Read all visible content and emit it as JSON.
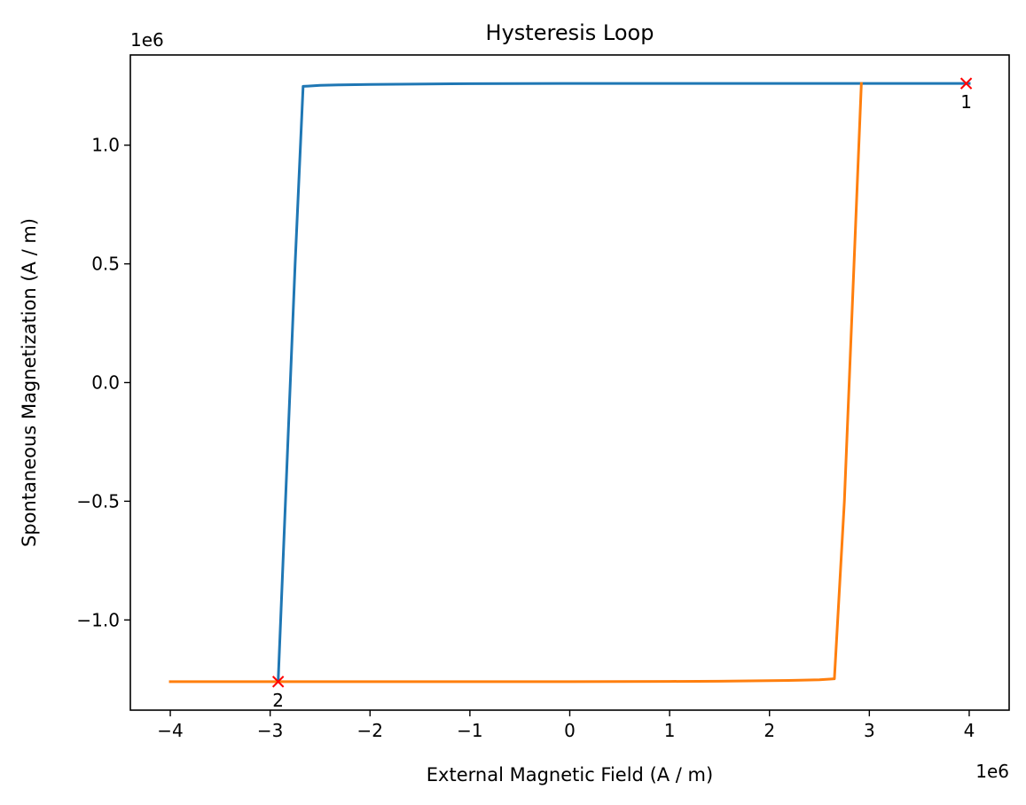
{
  "chart_data": {
    "type": "line",
    "title": "Hysteresis Loop",
    "xlabel": "External Magnetic Field (A / m)",
    "ylabel": "Spontaneous Magnetization (A / m)",
    "x_offset_label": "1e6",
    "y_offset_label": "1e6",
    "xlim": [
      -4.4,
      4.4
    ],
    "ylim": [
      -1.38,
      1.38
    ],
    "x_scale": 1000000,
    "y_scale": 1000000,
    "x_ticks": [
      -4,
      -3,
      -2,
      -1,
      0,
      1,
      2,
      3,
      4
    ],
    "x_tick_labels": [
      "−4",
      "−3",
      "−2",
      "−1",
      "0",
      "1",
      "2",
      "3",
      "4"
    ],
    "y_ticks": [
      -1.0,
      -0.5,
      0.0,
      0.5,
      1.0
    ],
    "y_tick_labels": [
      "−1.0",
      "−0.5",
      "0.0",
      "0.5",
      "1.0"
    ],
    "grid": false,
    "legend": "none",
    "series": [
      {
        "color": "#1f77b4",
        "x": [
          4.0,
          3.0,
          2.0,
          1.0,
          0.0,
          -1.0,
          -2.0,
          -2.3,
          -2.5,
          -2.62,
          -2.67,
          -2.75,
          -2.92
        ],
        "y": [
          1.26,
          1.26,
          1.26,
          1.26,
          1.26,
          1.259,
          1.256,
          1.254,
          1.252,
          1.249,
          1.248,
          0.5,
          -1.26
        ]
      },
      {
        "color": "#ff7f0e",
        "x": [
          -4.0,
          -3.0,
          -2.0,
          -1.0,
          0.0,
          1.0,
          1.5,
          2.0,
          2.3,
          2.5,
          2.62,
          2.65,
          2.75,
          2.92
        ],
        "y": [
          -1.26,
          -1.26,
          -1.26,
          -1.26,
          -1.26,
          -1.259,
          -1.258,
          -1.256,
          -1.254,
          -1.252,
          -1.249,
          -1.248,
          -0.5,
          1.26
        ]
      }
    ],
    "markers": [
      {
        "x": 3.97,
        "y": 1.26,
        "label": "1",
        "color": "#ff0000",
        "shape": "x"
      },
      {
        "x": -2.92,
        "y": -1.26,
        "label": "2",
        "color": "#ff0000",
        "shape": "x"
      }
    ]
  }
}
